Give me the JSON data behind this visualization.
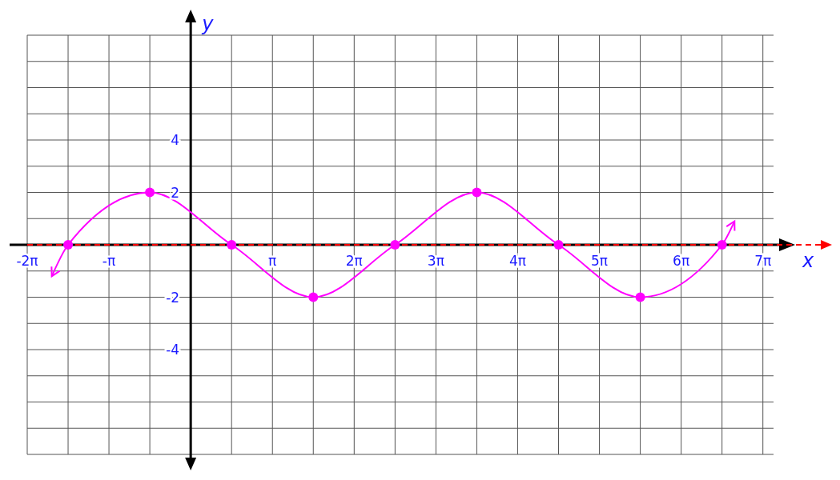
{
  "chart_data": {
    "type": "line",
    "xlabel": "x",
    "ylabel": "y",
    "xlim": [
      -6.283,
      22.4
    ],
    "ylim": [
      -8,
      8
    ],
    "xticks": [
      {
        "value": -6.283,
        "label": "-2π"
      },
      {
        "value": -4.712,
        "label": null
      },
      {
        "value": -3.142,
        "label": "-π"
      },
      {
        "value": -1.571,
        "label": null
      },
      {
        "value": 0,
        "label": null
      },
      {
        "value": 1.571,
        "label": null
      },
      {
        "value": 3.142,
        "label": "π"
      },
      {
        "value": 4.712,
        "label": null
      },
      {
        "value": 6.283,
        "label": "2π"
      },
      {
        "value": 7.854,
        "label": null
      },
      {
        "value": 9.425,
        "label": "3π"
      },
      {
        "value": 10.996,
        "label": null
      },
      {
        "value": 12.566,
        "label": "4π"
      },
      {
        "value": 14.137,
        "label": null
      },
      {
        "value": 15.708,
        "label": "5π"
      },
      {
        "value": 17.279,
        "label": null
      },
      {
        "value": 18.85,
        "label": "6π"
      },
      {
        "value": 20.42,
        "label": null
      },
      {
        "value": 21.991,
        "label": "7π"
      }
    ],
    "yticks": [
      {
        "value": -8,
        "label": null
      },
      {
        "value": -7,
        "label": null
      },
      {
        "value": -6,
        "label": null
      },
      {
        "value": -5,
        "label": null
      },
      -4,
      {
        "value": -3,
        "label": null
      },
      -2,
      {
        "value": -1,
        "label": null
      },
      {
        "value": 0,
        "label": null
      },
      {
        "value": 1,
        "label": null
      },
      2,
      {
        "value": 3,
        "label": null
      },
      4,
      {
        "value": 5,
        "label": null
      },
      {
        "value": 6,
        "label": null
      },
      {
        "value": 7,
        "label": null
      },
      {
        "value": 8,
        "label": null
      }
    ],
    "grid": true,
    "ref_lines": [
      {
        "axis": "y",
        "value": 0,
        "color": "#ff0000",
        "line_style": "dashed"
      }
    ],
    "series": [
      {
        "type": "line",
        "color": "#ff00ff",
        "marker": "none",
        "x": [
          -5.34,
          -4.712,
          -1.571,
          1.571,
          4.712,
          7.854,
          10.996,
          14.137,
          17.279,
          20.42,
          20.9
        ],
        "values": [
          -1.2,
          0,
          2,
          0,
          -2,
          0,
          2,
          0,
          -2,
          0,
          0.9
        ]
      },
      {
        "type": "scatter",
        "color": "#ff00ff",
        "marker": "circle",
        "x": [
          -4.712,
          -1.571,
          1.571,
          4.712,
          7.854,
          10.996,
          14.137,
          17.279,
          20.42
        ],
        "values": [
          0,
          2,
          0,
          -2,
          0,
          2,
          0,
          -2,
          0
        ]
      }
    ]
  }
}
